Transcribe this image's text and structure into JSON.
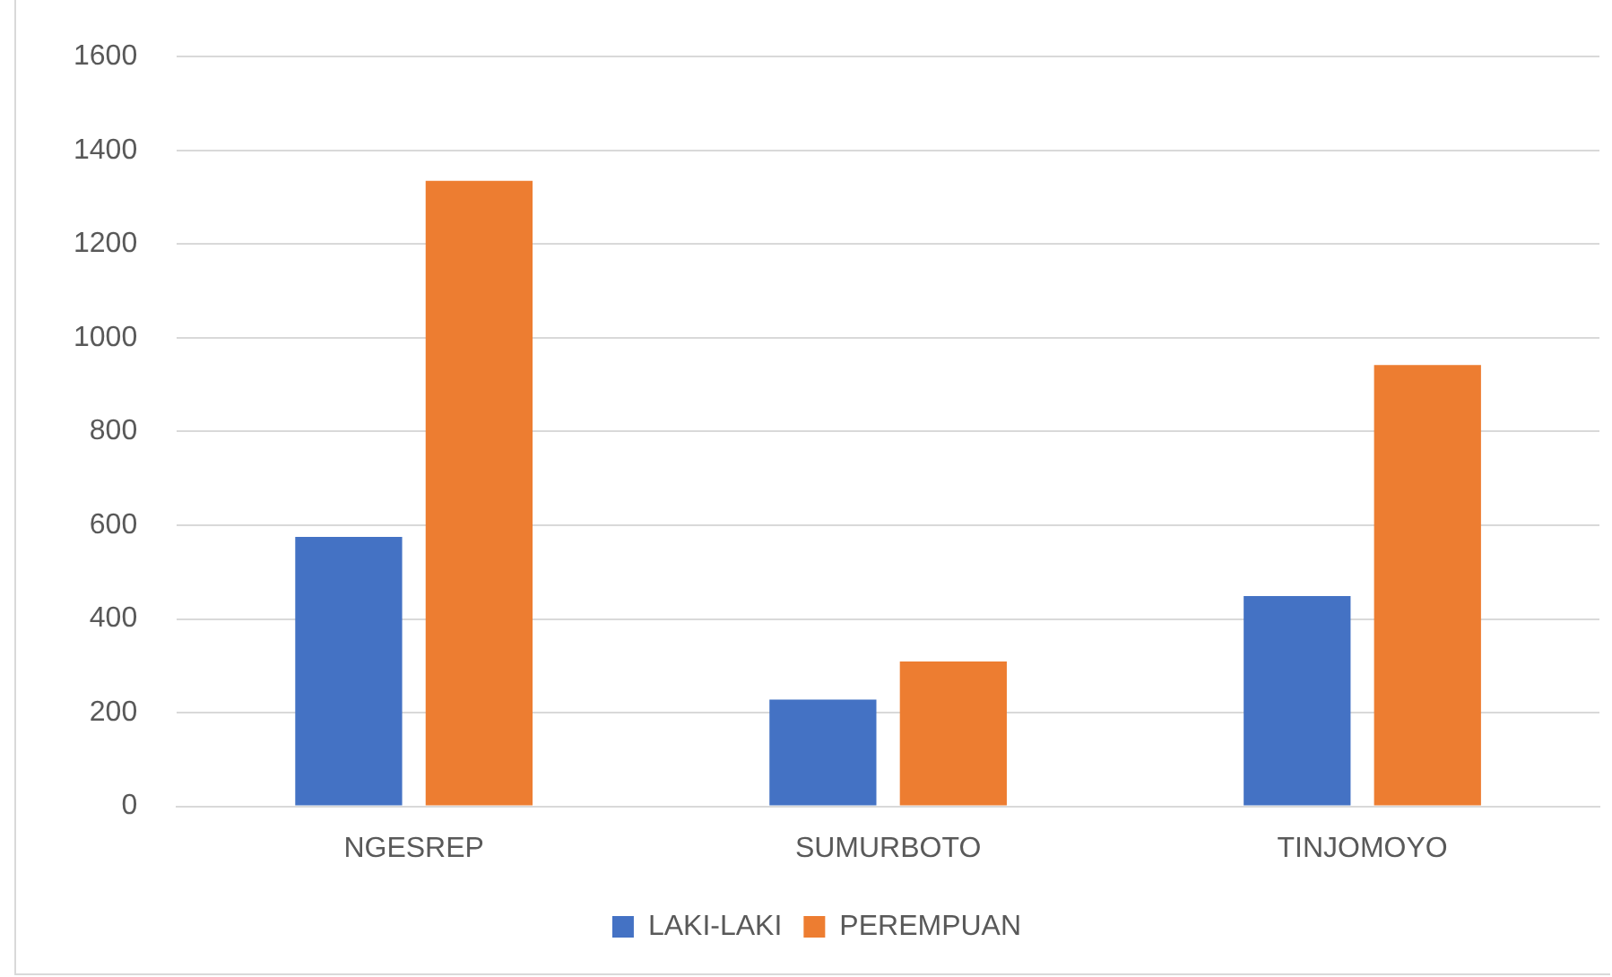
{
  "chart_data": {
    "type": "bar",
    "categories": [
      "NGESREP",
      "SUMURBOTO",
      "TINJOMOYO"
    ],
    "series": [
      {
        "name": "LAKI-LAKI",
        "color": "#4472c4",
        "values": [
          575,
          228,
          449
        ]
      },
      {
        "name": "PEREMPUAN",
        "color": "#ed7d31",
        "values": [
          1335,
          309,
          942
        ]
      }
    ],
    "ylim": [
      0,
      1600
    ],
    "yticks": [
      0,
      200,
      400,
      600,
      800,
      1000,
      1200,
      1400,
      1600
    ],
    "grid": "y",
    "legend": "bottom"
  }
}
